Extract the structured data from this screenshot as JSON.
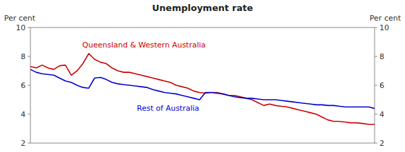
{
  "chart_data": {
    "type": "line",
    "title": "Unemployment rate",
    "y_label": "Per cent",
    "y2_label": "Per cent",
    "categories": [
      null,
      null,
      null,
      null,
      null,
      null,
      null,
      null,
      null,
      null,
      null,
      null,
      null,
      null,
      null,
      null,
      null,
      null,
      null,
      null,
      null,
      null,
      null,
      null,
      null,
      null,
      null,
      null,
      null,
      null,
      null,
      null,
      null,
      null,
      null,
      null,
      null,
      null,
      null,
      null,
      null,
      null,
      null,
      null,
      null,
      null,
      null,
      null,
      null,
      null,
      null,
      null,
      null,
      null,
      null,
      null,
      null,
      null,
      null,
      null
    ],
    "series": [
      {
        "name": "Queensland & Western Australia",
        "color": "#cc0000",
        "values": [
          7.3,
          7.2,
          7.4,
          7.2,
          7.1,
          7.35,
          7.4,
          6.7,
          7.0,
          7.5,
          8.2,
          7.8,
          7.6,
          7.5,
          7.2,
          7.0,
          6.9,
          6.9,
          6.8,
          6.7,
          6.6,
          6.5,
          6.4,
          6.3,
          6.2,
          6.0,
          5.9,
          5.8,
          5.6,
          5.5,
          5.45,
          5.5,
          5.5,
          5.4,
          5.3,
          5.3,
          5.2,
          5.1,
          5.0,
          4.8,
          4.6,
          4.7,
          4.6,
          4.55,
          4.5,
          4.4,
          4.3,
          4.2,
          4.1,
          4.0,
          3.8,
          3.6,
          3.5,
          3.5,
          3.45,
          3.4,
          3.4,
          3.35,
          3.3,
          3.3
        ]
      },
      {
        "name": "Rest of Australia",
        "color": "#0000cc",
        "values": [
          7.1,
          6.9,
          6.8,
          6.75,
          6.7,
          6.5,
          6.3,
          6.2,
          6.0,
          5.85,
          5.8,
          6.5,
          6.55,
          6.4,
          6.2,
          6.1,
          6.05,
          6.0,
          5.95,
          5.9,
          5.85,
          5.7,
          5.6,
          5.5,
          5.45,
          5.4,
          5.3,
          5.2,
          5.1,
          5.0,
          5.5,
          5.5,
          5.45,
          5.4,
          5.3,
          5.2,
          5.15,
          5.1,
          5.1,
          5.05,
          5.0,
          5.0,
          5.0,
          4.95,
          4.9,
          4.85,
          4.8,
          4.75,
          4.7,
          4.65,
          4.65,
          4.6,
          4.6,
          4.55,
          4.5,
          4.5,
          4.5,
          4.5,
          4.5,
          4.4
        ]
      }
    ],
    "ylim": [
      2,
      10
    ],
    "yticks": [
      2,
      4,
      6,
      8,
      10
    ],
    "y2lim": [
      2,
      10
    ],
    "y2ticks": [
      2,
      4,
      6,
      8,
      10
    ],
    "grid": false,
    "tick_labels": "y"
  }
}
